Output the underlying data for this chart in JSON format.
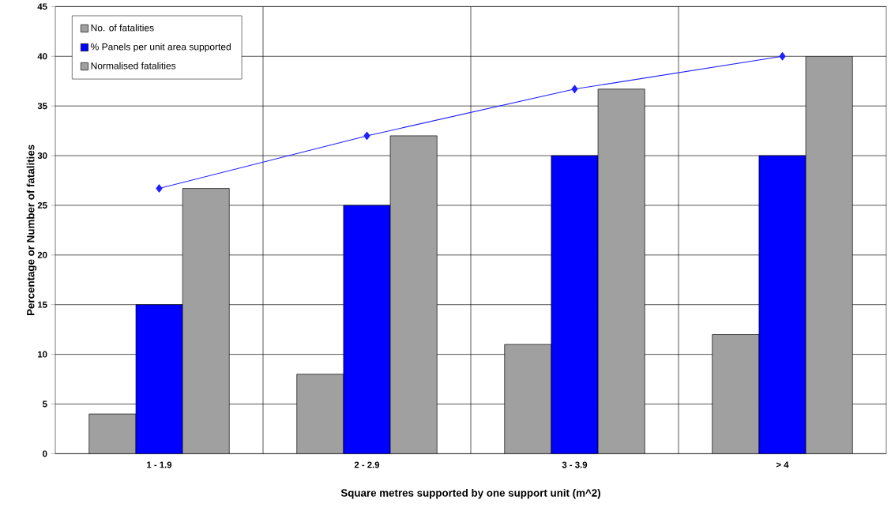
{
  "chart_data": {
    "type": "bar",
    "xlabel": "Square metres supported by one support unit (m^2)",
    "ylabel": "Percentage or Number of fatalities",
    "categories": [
      "1 - 1.9",
      "2 - 2.9",
      "3 - 3.9",
      "> 4"
    ],
    "series": [
      {
        "name": "No. of fatalities",
        "color": "#a0a0a0",
        "values": [
          4,
          8,
          11,
          12
        ]
      },
      {
        "name": "% Panels per unit area supported",
        "color": "#0000ff",
        "values": [
          15,
          25,
          30,
          30
        ]
      },
      {
        "name": "Normalised fatalities",
        "color": "#a0a0a0",
        "values": [
          26.7,
          32,
          36.7,
          40
        ]
      },
      {
        "type": "line",
        "color": "#1f1fff",
        "marker": "diamond",
        "values": [
          26.7,
          32,
          36.7,
          40
        ]
      }
    ],
    "ylim": [
      0,
      45
    ],
    "yticks": [
      0,
      5,
      10,
      15,
      20,
      25,
      30,
      35,
      40,
      45
    ],
    "grid": true,
    "legend": "top left"
  }
}
